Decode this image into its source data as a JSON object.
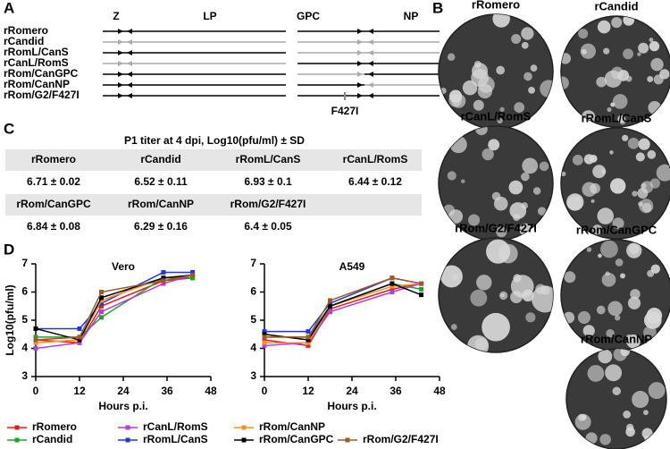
{
  "panels": {
    "a": {
      "letter": "A",
      "headers": [
        "Z",
        "LP",
        "GPC",
        "NP"
      ],
      "rows": [
        "rRomero",
        "rCandid",
        "rRomL/CanS",
        "rCanL/RomS",
        "rRom/CanGPC",
        "rRom/CanNP",
        "rRom/G2/F427I"
      ],
      "mutation": "F427I"
    },
    "b": {
      "letter": "B",
      "plaques": [
        "rRomero",
        "rCandid",
        "rCanL/RomS",
        "rRomL/CanS",
        "rRom/G2/F427I",
        "rRom/CanGPC",
        "rRom/CanNP"
      ]
    },
    "c": {
      "letter": "C",
      "title": "P1 titer at 4 dpi, Log10(pfu/ml) ± SD",
      "rows": [
        [
          {
            "name": "rRomero",
            "value": "6.71 ± 0.02"
          },
          {
            "name": "rCandid",
            "value": "6.52 ± 0.11"
          },
          {
            "name": "rRomL/CanS",
            "value": "6.93 ± 0.1"
          },
          {
            "name": "rCanL/RomS",
            "value": "6.44 ± 0.12"
          }
        ],
        [
          {
            "name": "rRom/CanGPC",
            "value": "6.84 ± 0.08"
          },
          {
            "name": "rRom/CanNP",
            "value": "6.29 ± 0.16"
          },
          {
            "name": "rRom/G2/F427I",
            "value": "6.4 ± 0.05"
          }
        ]
      ]
    },
    "d": {
      "letter": "D"
    }
  },
  "chart_data": [
    {
      "type": "line",
      "title": "Vero",
      "xlabel": "Hours p.i.",
      "ylabel": "Log10(pfu/ml)",
      "x": [
        0,
        12,
        18,
        35,
        43
      ],
      "xlim": [
        0,
        48
      ],
      "xticks": [
        0,
        12,
        24,
        36,
        48
      ],
      "ylim": [
        3,
        7
      ],
      "yticks": [
        3,
        4,
        5,
        6,
        7
      ],
      "series": [
        {
          "name": "rRomero",
          "color": "#e8191c",
          "values": [
            4.3,
            4.2,
            5.5,
            6.4,
            6.5
          ]
        },
        {
          "name": "rCandid",
          "color": "#22a02c",
          "values": [
            4.4,
            4.4,
            5.1,
            6.5,
            6.5
          ]
        },
        {
          "name": "rCanL/RomS",
          "color": "#b43ed6",
          "values": [
            4.0,
            4.2,
            5.3,
            6.3,
            6.6
          ]
        },
        {
          "name": "rRomL/CanS",
          "color": "#2334e0",
          "values": [
            4.7,
            4.7,
            5.6,
            6.7,
            6.7
          ]
        },
        {
          "name": "rRom/CanNP",
          "color": "#f5901e",
          "values": [
            4.2,
            4.3,
            5.7,
            6.5,
            6.6
          ]
        },
        {
          "name": "rRom/CanGPC",
          "color": "#000000",
          "values": [
            4.7,
            4.3,
            5.8,
            6.5,
            6.6
          ]
        },
        {
          "name": "rRom/G2/F427I",
          "color": "#9c5a28",
          "values": [
            4.3,
            4.4,
            6.0,
            6.4,
            6.6
          ]
        }
      ]
    },
    {
      "type": "line",
      "title": "A549",
      "xlabel": "Hours p.i.",
      "x": [
        0,
        12,
        18,
        35,
        43
      ],
      "xlim": [
        0,
        48
      ],
      "xticks": [
        0,
        12,
        24,
        36,
        48
      ],
      "ylim": [
        3,
        7
      ],
      "yticks": [
        3,
        4,
        5,
        6,
        7
      ],
      "series": [
        {
          "name": "rRomero",
          "color": "#e8191c",
          "values": [
            4.3,
            4.1,
            5.4,
            6.1,
            6.3
          ]
        },
        {
          "name": "rCandid",
          "color": "#22a02c",
          "values": [
            4.4,
            4.4,
            5.5,
            6.3,
            6.1
          ]
        },
        {
          "name": "rCanL/RomS",
          "color": "#b43ed6",
          "values": [
            4.1,
            4.2,
            5.3,
            6.0,
            6.3
          ]
        },
        {
          "name": "rRomL/CanS",
          "color": "#2334e0",
          "values": [
            4.6,
            4.6,
            5.6,
            6.5,
            6.3
          ]
        },
        {
          "name": "rRom/CanNP",
          "color": "#f5901e",
          "values": [
            4.2,
            4.2,
            5.5,
            6.2,
            6.3
          ]
        },
        {
          "name": "rRom/CanGPC",
          "color": "#000000",
          "values": [
            4.5,
            4.3,
            5.5,
            6.3,
            5.9
          ]
        },
        {
          "name": "rRom/G2/F427I",
          "color": "#9c5a28",
          "values": [
            4.4,
            4.4,
            5.7,
            6.5,
            6.3
          ]
        }
      ]
    }
  ]
}
